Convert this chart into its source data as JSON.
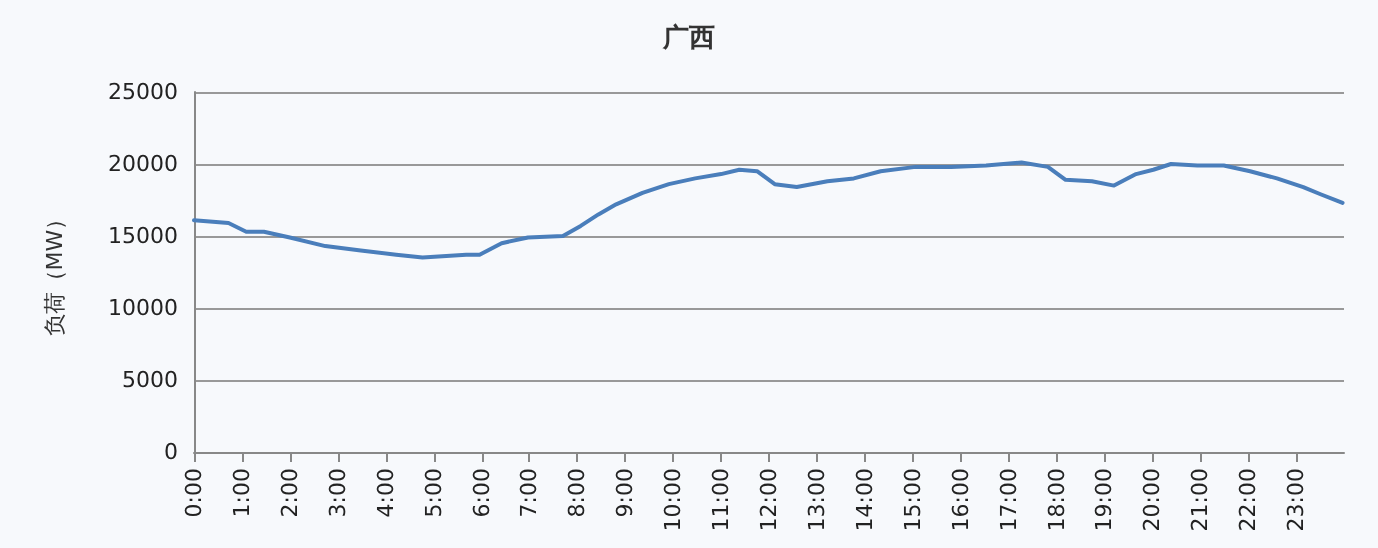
{
  "chart_data": {
    "type": "line",
    "title": "广西",
    "ylabel": "负荷（MW）",
    "xlim": [
      0,
      24
    ],
    "ylim": [
      0,
      25000
    ],
    "yticks": [
      0,
      5000,
      10000,
      15000,
      20000,
      25000
    ],
    "xticks": [
      {
        "value": 0,
        "label": "0:00"
      },
      {
        "value": 1,
        "label": "1:00"
      },
      {
        "value": 2,
        "label": "2:00"
      },
      {
        "value": 3,
        "label": "3:00"
      },
      {
        "value": 4,
        "label": "4:00"
      },
      {
        "value": 5,
        "label": "5:00"
      },
      {
        "value": 6,
        "label": "6:00"
      },
      {
        "value": 7,
        "label": "7:00"
      },
      {
        "value": 8,
        "label": "8:00"
      },
      {
        "value": 9,
        "label": "9:00"
      },
      {
        "value": 10,
        "label": "10:00"
      },
      {
        "value": 11,
        "label": "11:00"
      },
      {
        "value": 12,
        "label": "12:00"
      },
      {
        "value": 13,
        "label": "13:00"
      },
      {
        "value": 14,
        "label": "14:00"
      },
      {
        "value": 15,
        "label": "15:00"
      },
      {
        "value": 16,
        "label": "16:00"
      },
      {
        "value": 17,
        "label": "17:00"
      },
      {
        "value": 18,
        "label": "18:00"
      },
      {
        "value": 19,
        "label": "19:00"
      },
      {
        "value": 20,
        "label": "20:00"
      },
      {
        "value": 21,
        "label": "21:00"
      },
      {
        "value": 22,
        "label": "22:00"
      },
      {
        "value": 23,
        "label": "23:00"
      }
    ],
    "x": [
      0,
      0.72,
      1.09,
      1.46,
      2.0,
      2.74,
      3.48,
      4.22,
      4.77,
      5.68,
      5.96,
      6.42,
      6.97,
      7.7,
      8.07,
      8.44,
      8.81,
      9.36,
      9.91,
      10.46,
      11.0,
      11.38,
      11.75,
      12.12,
      12.58,
      13.22,
      13.77,
      14.33,
      15.06,
      15.8,
      16.53,
      17.27,
      17.82,
      18.19,
      18.74,
      19.2,
      19.66,
      20.02,
      20.39,
      20.94,
      21.49,
      22.04,
      22.6,
      23.15,
      23.51,
      23.97
    ],
    "series": [
      {
        "color": "#4a7ebb",
        "values": [
          16100,
          15900,
          15300,
          15300,
          14900,
          14300,
          14000,
          13700,
          13500,
          13700,
          13700,
          14500,
          14900,
          15000,
          15700,
          16500,
          17200,
          18000,
          18600,
          19000,
          19300,
          19600,
          19500,
          18600,
          18400,
          18800,
          19000,
          19500,
          19800,
          19800,
          19900,
          20100,
          19800,
          18900,
          18800,
          18500,
          19300,
          19600,
          20000,
          19900,
          19900,
          19500,
          19000,
          18400,
          17900,
          17300
        ]
      }
    ],
    "grid": "y",
    "marker": "none",
    "line_style": "solid"
  }
}
